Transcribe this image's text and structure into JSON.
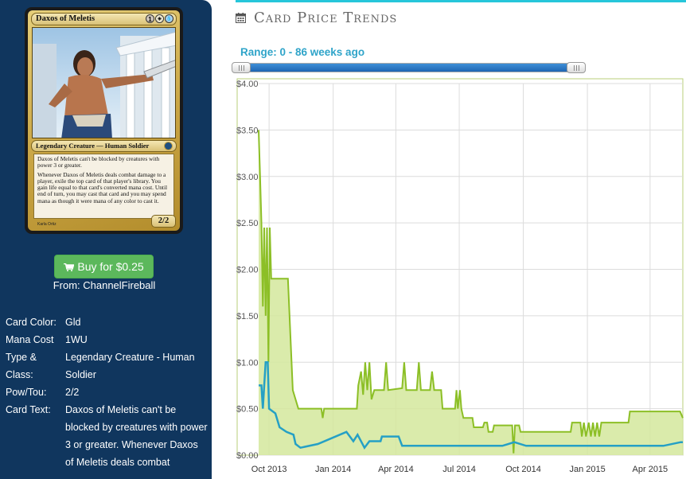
{
  "card": {
    "name": "Daxos of Meletis",
    "mana_symbols": [
      "1",
      "☀",
      "💧"
    ],
    "type_line": "Legendary Creature — Human Soldier",
    "text_paragraphs": [
      "Daxos of Meletis can't be blocked by creatures with power 3 or greater.",
      "Whenever Daxos of Meletis deals combat damage to a player, exile the top card of that player's library. You gain life equal to that card's converted mana cost. Until end of turn, you may cast that card and you may spend mana as though it were mana of any color to cast it."
    ],
    "power_toughness": "2/2",
    "artist": "Karla Ortiz",
    "frame_colors": {
      "frame": "#c9a544",
      "art_sky": "#b7d3ea"
    }
  },
  "purchase": {
    "button_label": "Buy for $0.25",
    "from_text": "From: ChannelFireball",
    "icon": "shopping-cart-icon"
  },
  "details": [
    {
      "label": "Card Color:",
      "value": "Gld"
    },
    {
      "label": "Mana Cost",
      "value": "1WU"
    },
    {
      "label": "Type & Class:",
      "value": "Legendary Creature - Human Soldier"
    },
    {
      "label": "Pow/Tou:",
      "value": "2/2"
    },
    {
      "label": "Card Text:",
      "value": "Daxos of Meletis can't be blocked by creatures with power 3 or greater. Whenever Daxos of Meletis deals combat"
    }
  ],
  "header": {
    "title": "Card Price Trends",
    "icon": "calendar-icon",
    "range_label": "Range: 0 - 86 weeks ago"
  },
  "colors": {
    "panel_bg": "#10365e",
    "accent": "#26c6da",
    "buy_green": "#5cb85c",
    "series_green": "#8cbf26",
    "series_fill": "#d4e89c",
    "series_blue": "#25a0c5",
    "slider_blue": "#2b78c4"
  },
  "chart_data": {
    "type": "line",
    "x_axis_type": "date",
    "xlim": [
      "2013-09-16",
      "2015-05-18"
    ],
    "ylim": [
      0,
      4
    ],
    "y_ticks": [
      0,
      0.5,
      1,
      1.5,
      2,
      2.5,
      3,
      3.5,
      4
    ],
    "y_tick_labels": [
      "$0.00",
      "$0.50",
      "$1.00",
      "$1.50",
      "$2.00",
      "$2.50",
      "$3.00",
      "$3.50",
      "$4.00"
    ],
    "x_tick_labels": [
      {
        "date": "2013-10-01",
        "label": "Oct 2013"
      },
      {
        "date": "2014-01-01",
        "label": "Jan 2014"
      },
      {
        "date": "2014-04-01",
        "label": "Apr 2014"
      },
      {
        "date": "2014-07-01",
        "label": "Jul 2014"
      },
      {
        "date": "2014-10-01",
        "label": "Oct 2014"
      },
      {
        "date": "2015-01-01",
        "label": "Jan 2015"
      },
      {
        "date": "2015-04-01",
        "label": "Apr 2015"
      }
    ],
    "grid": true,
    "legend": "none",
    "series": [
      {
        "style": "area",
        "points": [
          [
            "2013-09-16",
            3.5
          ],
          [
            "2013-09-18",
            3.0
          ],
          [
            "2013-09-20",
            2.5
          ],
          [
            "2013-09-22",
            1.6
          ],
          [
            "2013-09-24",
            2.45
          ],
          [
            "2013-09-26",
            1.5
          ],
          [
            "2013-09-28",
            2.45
          ],
          [
            "2013-09-30",
            1.0
          ],
          [
            "2013-10-02",
            2.45
          ],
          [
            "2013-10-04",
            1.9
          ],
          [
            "2013-10-28",
            1.9
          ],
          [
            "2013-11-04",
            0.7
          ],
          [
            "2013-11-12",
            0.5
          ],
          [
            "2013-12-15",
            0.5
          ],
          [
            "2013-12-17",
            0.4
          ],
          [
            "2013-12-19",
            0.5
          ],
          [
            "2014-02-04",
            0.5
          ],
          [
            "2014-02-06",
            0.75
          ],
          [
            "2014-02-10",
            0.9
          ],
          [
            "2014-02-13",
            0.65
          ],
          [
            "2014-02-16",
            1.0
          ],
          [
            "2014-02-19",
            0.7
          ],
          [
            "2014-02-22",
            1.0
          ],
          [
            "2014-02-25",
            0.6
          ],
          [
            "2014-03-01",
            0.7
          ],
          [
            "2014-03-15",
            0.7
          ],
          [
            "2014-03-18",
            1.0
          ],
          [
            "2014-03-21",
            0.7
          ],
          [
            "2014-04-10",
            0.72
          ],
          [
            "2014-04-13",
            1.0
          ],
          [
            "2014-04-16",
            0.7
          ],
          [
            "2014-05-01",
            0.7
          ],
          [
            "2014-05-04",
            1.0
          ],
          [
            "2014-05-07",
            0.7
          ],
          [
            "2014-05-20",
            0.7
          ],
          [
            "2014-05-23",
            0.9
          ],
          [
            "2014-05-26",
            0.7
          ],
          [
            "2014-06-05",
            0.7
          ],
          [
            "2014-06-07",
            0.5
          ],
          [
            "2014-06-25",
            0.5
          ],
          [
            "2014-06-27",
            0.7
          ],
          [
            "2014-06-29",
            0.5
          ],
          [
            "2014-07-02",
            0.7
          ],
          [
            "2014-07-04",
            0.5
          ],
          [
            "2014-07-07",
            0.4
          ],
          [
            "2014-07-20",
            0.4
          ],
          [
            "2014-07-22",
            0.3
          ],
          [
            "2014-08-04",
            0.3
          ],
          [
            "2014-08-06",
            0.35
          ],
          [
            "2014-08-10",
            0.35
          ],
          [
            "2014-08-12",
            0.25
          ],
          [
            "2014-08-18",
            0.25
          ],
          [
            "2014-08-20",
            0.32
          ],
          [
            "2014-09-15",
            0.32
          ],
          [
            "2014-09-17",
            0.02
          ],
          [
            "2014-09-19",
            0.32
          ],
          [
            "2014-09-25",
            0.32
          ],
          [
            "2014-09-27",
            0.25
          ],
          [
            "2014-12-08",
            0.25
          ],
          [
            "2014-12-10",
            0.35
          ],
          [
            "2014-12-15",
            0.35
          ],
          [
            "2014-12-22",
            0.35
          ],
          [
            "2014-12-24",
            0.2
          ],
          [
            "2014-12-27",
            0.35
          ],
          [
            "2014-12-30",
            0.2
          ],
          [
            "2015-01-03",
            0.35
          ],
          [
            "2015-01-06",
            0.2
          ],
          [
            "2015-01-09",
            0.35
          ],
          [
            "2015-01-12",
            0.2
          ],
          [
            "2015-01-15",
            0.35
          ],
          [
            "2015-01-18",
            0.2
          ],
          [
            "2015-01-21",
            0.35
          ],
          [
            "2015-03-01",
            0.35
          ],
          [
            "2015-03-03",
            0.47
          ],
          [
            "2015-05-14",
            0.47
          ],
          [
            "2015-05-18",
            0.4
          ]
        ]
      },
      {
        "style": "line",
        "points": [
          [
            "2013-09-16",
            0.75
          ],
          [
            "2013-09-20",
            0.75
          ],
          [
            "2013-09-22",
            0.5
          ],
          [
            "2013-09-24",
            0.75
          ],
          [
            "2013-09-26",
            1.0
          ],
          [
            "2013-09-29",
            1.0
          ],
          [
            "2013-10-01",
            0.5
          ],
          [
            "2013-10-10",
            0.45
          ],
          [
            "2013-10-16",
            0.3
          ],
          [
            "2013-10-26",
            0.25
          ],
          [
            "2013-11-05",
            0.22
          ],
          [
            "2013-11-08",
            0.12
          ],
          [
            "2013-11-15",
            0.08
          ],
          [
            "2013-12-10",
            0.12
          ],
          [
            "2014-01-20",
            0.25
          ],
          [
            "2014-01-30",
            0.15
          ],
          [
            "2014-02-05",
            0.22
          ],
          [
            "2014-02-15",
            0.08
          ],
          [
            "2014-02-22",
            0.15
          ],
          [
            "2014-03-10",
            0.15
          ],
          [
            "2014-03-12",
            0.2
          ],
          [
            "2014-04-05",
            0.2
          ],
          [
            "2014-04-10",
            0.1
          ],
          [
            "2014-06-01",
            0.1
          ],
          [
            "2014-09-01",
            0.1
          ],
          [
            "2014-09-18",
            0.14
          ],
          [
            "2014-10-05",
            0.1
          ],
          [
            "2015-04-20",
            0.1
          ],
          [
            "2015-05-15",
            0.14
          ],
          [
            "2015-05-18",
            0.14
          ]
        ]
      }
    ]
  }
}
